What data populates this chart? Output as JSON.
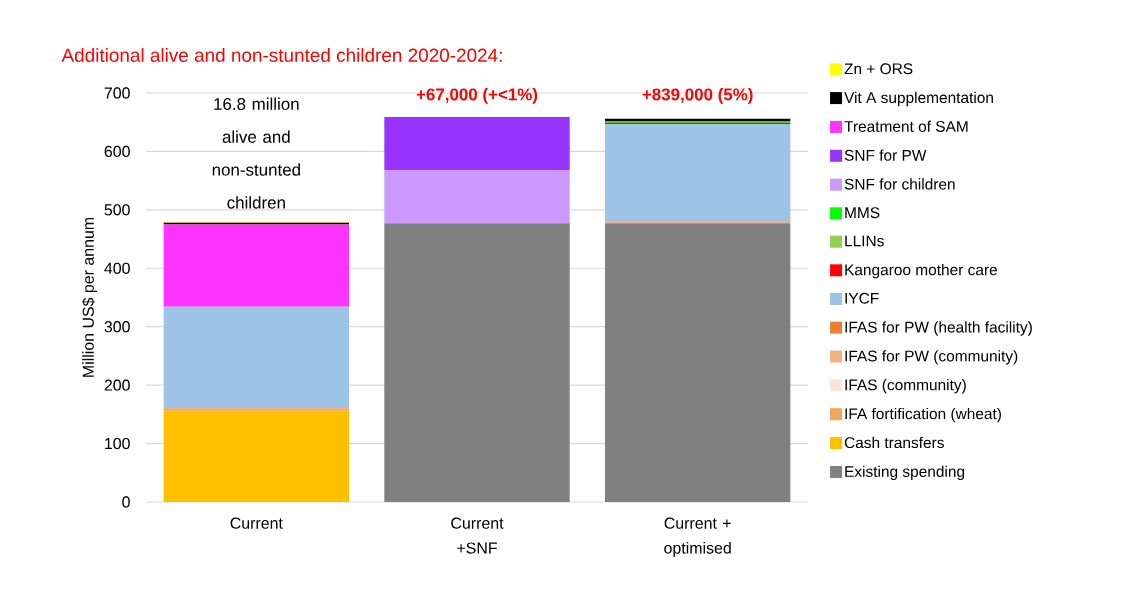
{
  "chart_data": {
    "type": "bar",
    "stacked": true,
    "title": "Additional alive and non-stunted children 2020-2024:",
    "ylabel": "Million US$ per annum",
    "categories": [
      "Current",
      "Current +SNF",
      "Current + optimised"
    ],
    "ylim": [
      0,
      700
    ],
    "yticks": [
      0,
      100,
      200,
      300,
      400,
      500,
      600,
      700
    ],
    "grid": "y",
    "legend": "right",
    "annotations": [
      "16.8 million alive and non-stunted children",
      "+67,000 (+<1%)",
      "+839,000 (5%)"
    ],
    "series": [
      {
        "name": "Existing spending",
        "color": "#808080",
        "values": [
          0,
          477,
          477
        ]
      },
      {
        "name": "Cash transfers",
        "color": "#ffc000",
        "values": [
          156,
          0,
          0
        ]
      },
      {
        "name": "IFA fortification (wheat)",
        "color": "#f4a460",
        "values": [
          3,
          0,
          0
        ]
      },
      {
        "name": "IFAS (community)",
        "color": "#fbe5d6",
        "values": [
          0,
          0,
          0
        ]
      },
      {
        "name": "IFAS for PW (community)",
        "color": "#f4b183",
        "values": [
          2,
          0,
          4
        ]
      },
      {
        "name": "IFAS for PW (health facility)",
        "color": "#ed7d31",
        "values": [
          0,
          0,
          0
        ]
      },
      {
        "name": "IYCF",
        "color": "#9dc3e6",
        "values": [
          173,
          0,
          166
        ]
      },
      {
        "name": "Kangaroo mother care",
        "color": "#ff0000",
        "values": [
          0,
          0,
          2
        ]
      },
      {
        "name": "LLINs",
        "color": "#92d050",
        "values": [
          0,
          0,
          null
        ]
      },
      {
        "name": "MMS",
        "color": "#00ff00",
        "values": [
          0,
          0,
          2
        ]
      },
      {
        "name": "SNF for children",
        "color": "#cc99ff",
        "values": [
          0,
          91,
          0
        ]
      },
      {
        "name": "SNF for PW",
        "color": "#9933ff",
        "values": [
          0,
          91,
          0
        ]
      },
      {
        "name": "Treatment of SAM",
        "color": "#ff33ff",
        "values": [
          141,
          0,
          0
        ]
      },
      {
        "name": "Vit A supplementation",
        "color": "#000000",
        "values": [
          3,
          0,
          5
        ]
      },
      {
        "name": "Zn + ORS",
        "color": "#ffff00",
        "values": [
          1,
          0,
          null
        ]
      }
    ]
  }
}
